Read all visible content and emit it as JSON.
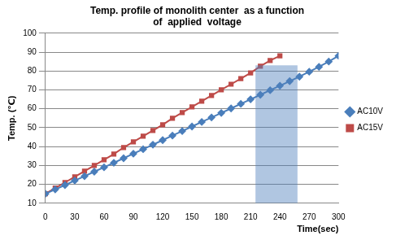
{
  "chart_data": {
    "type": "line",
    "title": [
      "Temp. profile of monolith center  as a function",
      "of  applied  voltage"
    ],
    "x_label": "Time(sec)",
    "y_label": "Temp. (℃)",
    "x": [
      0,
      10,
      20,
      30,
      40,
      50,
      60,
      70,
      80,
      90,
      100,
      110,
      120,
      130,
      140,
      150,
      160,
      170,
      180,
      190,
      200,
      210,
      220,
      230,
      240,
      250,
      260,
      270,
      280,
      290,
      300
    ],
    "series": [
      {
        "name": "AC10V",
        "color": "#4a7ebb",
        "marker": "diamond",
        "values": [
          15,
          17.3,
          19.6,
          22,
          24.3,
          26.7,
          29,
          31.4,
          33.8,
          36.2,
          38.6,
          41,
          43.4,
          45.8,
          48.2,
          50.6,
          53,
          55.4,
          57.8,
          60.2,
          62.6,
          65,
          67.4,
          69.8,
          72.2,
          74.6,
          77,
          79.6,
          82.2,
          85,
          88
        ]
      },
      {
        "name": "AC15V",
        "color": "#be4b48",
        "marker": "square",
        "values": [
          15,
          18,
          21,
          24,
          27,
          30,
          33,
          36,
          39.5,
          42.5,
          45.5,
          48.5,
          51.5,
          55,
          58,
          61,
          64,
          67,
          70,
          73,
          76,
          79,
          82.5,
          85.5,
          88,
          null,
          null,
          null,
          null,
          null,
          null
        ]
      }
    ],
    "xlim": [
      0,
      300
    ],
    "xticks": [
      0,
      30,
      60,
      90,
      120,
      150,
      180,
      210,
      240,
      270,
      300
    ],
    "ylim": [
      10,
      100
    ],
    "yticks": [
      10,
      20,
      30,
      40,
      50,
      60,
      70,
      80,
      90,
      100
    ],
    "shaded_region": {
      "x": [
        215,
        258
      ],
      "y": [
        10,
        83
      ],
      "color": "#4f81bd"
    },
    "grid": "y",
    "legend": "right"
  }
}
